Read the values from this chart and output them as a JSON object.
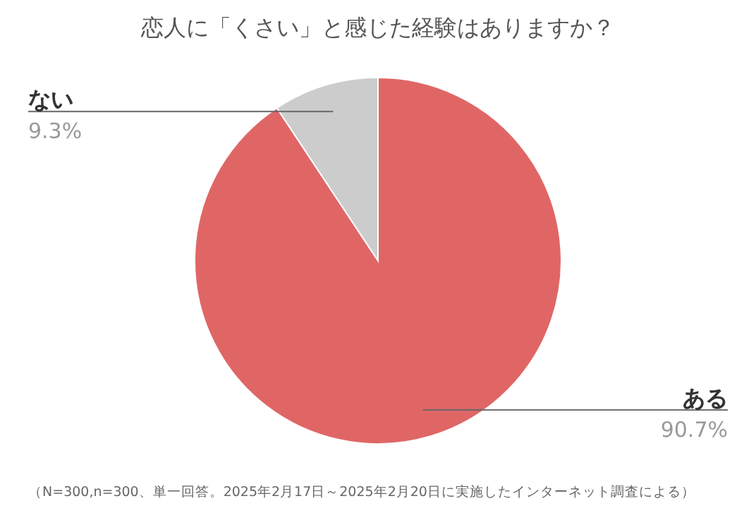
{
  "chart_data": {
    "type": "pie",
    "title": "恋人に「くさい」と感じた経験はありますか？",
    "categories": [
      "ある",
      "ない"
    ],
    "values": [
      90.7,
      9.3
    ],
    "colors": [
      "#e06666",
      "#cccccc"
    ],
    "value_labels": [
      "90.7%",
      "9.3%"
    ],
    "annotations": [
      "（N=300,n=300、単一回答。2025年2月17日～2025年2月20日に実施したインターネット調査による）"
    ]
  }
}
